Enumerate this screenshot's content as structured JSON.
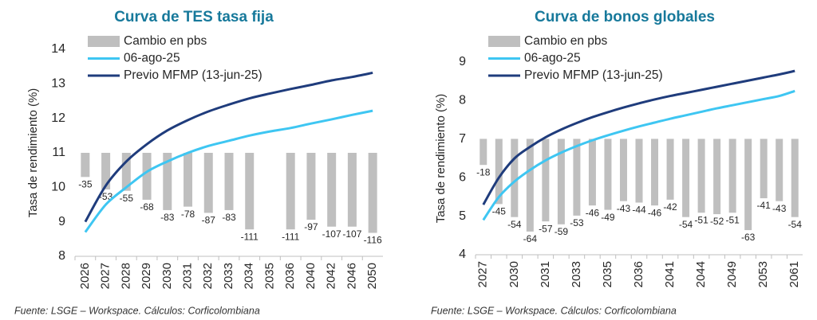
{
  "chart_data": [
    {
      "type": "combo",
      "title": "Curva de TES tasa fija",
      "y_label": "Tasa de rendimiento (%)",
      "source": "Fuente: LSGE – Workspace. Cálculos: Corficolombiana",
      "categories": [
        "2026",
        "2027",
        "2028",
        "2029",
        "2030",
        "2031",
        "2032",
        "2033",
        "2034",
        "2035",
        "2036",
        "2040",
        "2042",
        "2046",
        "2050"
      ],
      "series": [
        {
          "name": "Cambio en pbs",
          "type": "bar",
          "axis": "y2",
          "color": "#bfbfbf",
          "values": [
            -35,
            -53,
            -55,
            -68,
            -83,
            -78,
            -87,
            -83,
            -111,
            null,
            -111,
            -97,
            -107,
            -107,
            -116
          ]
        },
        {
          "name": "06-ago-25",
          "type": "line",
          "color": "#3ec6f2",
          "values": [
            8.7,
            9.5,
            10.0,
            10.45,
            10.75,
            11.0,
            11.2,
            11.35,
            11.5,
            11.62,
            11.72,
            11.85,
            11.97,
            12.1,
            12.22
          ]
        },
        {
          "name": "Previo MFMP (13-jun-25)",
          "type": "line",
          "color": "#1f3c7c",
          "values": [
            9.0,
            10.05,
            10.75,
            11.25,
            11.65,
            11.95,
            12.2,
            12.4,
            12.58,
            12.72,
            12.85,
            12.97,
            13.1,
            13.2,
            13.32
          ]
        }
      ],
      "ylim": [
        8,
        14
      ],
      "yticks": [
        8,
        9,
        10,
        11,
        12,
        13,
        14
      ],
      "y2lim": [
        -150,
        150
      ],
      "legend": "upper left",
      "grid": false
    },
    {
      "type": "combo",
      "title": "Curva de bonos globales",
      "y_label": "Tasa de rendimiento (%)",
      "source": "Fuente: LSGE – Workspace. Cálculos: Corficolombiana",
      "categories": [
        "2027",
        null,
        "2030",
        null,
        "2031",
        null,
        "2033",
        null,
        "2035",
        null,
        "2036",
        null,
        "2041",
        null,
        "2044",
        null,
        "2049",
        null,
        "2053",
        null,
        "2061"
      ],
      "series": [
        {
          "name": "Cambio en pbs",
          "type": "bar",
          "axis": "y2",
          "color": "#bfbfbf",
          "values": [
            -18,
            -45,
            -54,
            -64,
            -57,
            -59,
            -53,
            -46,
            -49,
            -43,
            -44,
            -46,
            -42,
            -54,
            -51,
            -52,
            -51,
            -63,
            -41,
            -43,
            -54
          ]
        },
        {
          "name": "06-ago-25",
          "type": "line",
          "color": "#3ec6f2",
          "values": [
            4.9,
            5.5,
            5.9,
            6.2,
            6.45,
            6.65,
            6.82,
            6.97,
            7.1,
            7.22,
            7.33,
            7.43,
            7.53,
            7.62,
            7.71,
            7.8,
            7.88,
            7.96,
            8.04,
            8.12,
            8.25
          ]
        },
        {
          "name": "Previo MFMP (13-jun-25)",
          "type": "line",
          "color": "#1f3c7c",
          "values": [
            5.3,
            6.0,
            6.5,
            6.8,
            7.05,
            7.25,
            7.42,
            7.57,
            7.7,
            7.82,
            7.93,
            8.03,
            8.12,
            8.2,
            8.28,
            8.36,
            8.44,
            8.52,
            8.6,
            8.68,
            8.77
          ]
        }
      ],
      "ylim": [
        4,
        9
      ],
      "yticks": [
        4,
        5,
        6,
        7,
        8,
        9
      ],
      "y2lim": [
        -80,
        53
      ],
      "legend": "upper left",
      "grid": false
    }
  ]
}
